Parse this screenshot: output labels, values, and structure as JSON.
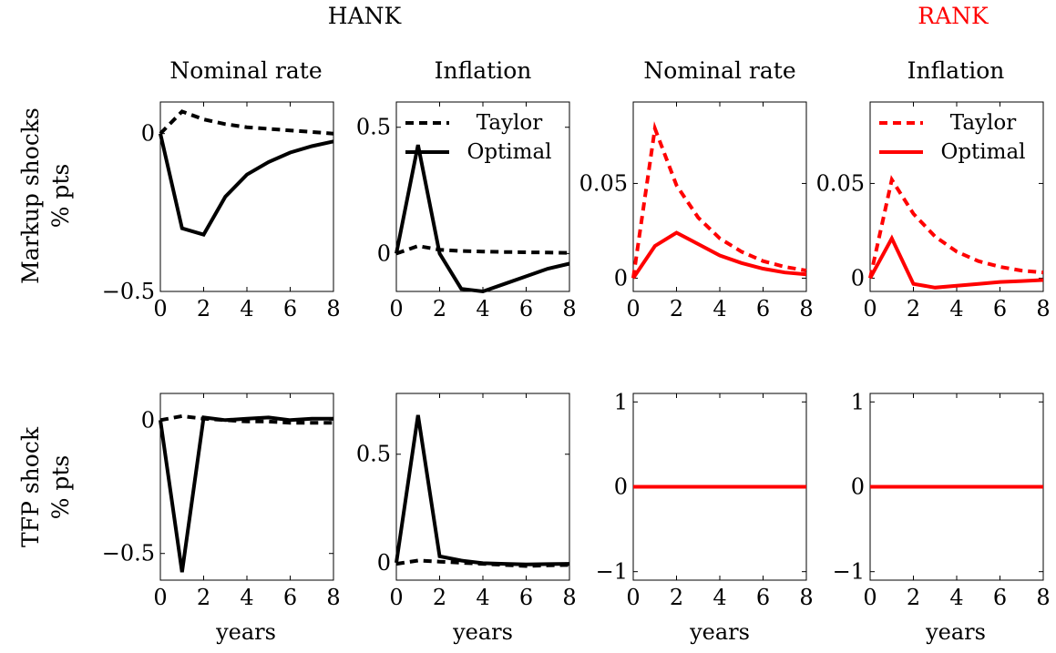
{
  "group_titles": {
    "hank": "HANK",
    "rank": "RANK"
  },
  "group_colors": {
    "hank": "#000000",
    "rank": "#ff0000"
  },
  "column_titles": [
    "Nominal rate",
    "Inflation",
    "Nominal rate",
    "Inflation"
  ],
  "row_labels": [
    {
      "line1": "Markup shocks",
      "line2": "% pts"
    },
    {
      "line1": "TFP shock",
      "line2": "% pts"
    }
  ],
  "xlabel": "years",
  "legend": {
    "taylor": "Taylor",
    "optimal": "Optimal"
  },
  "chart_data": [
    {
      "type": "line",
      "id": "hank-markup-nominal",
      "row": 0,
      "col": 0,
      "color": "#000000",
      "x": [
        0,
        1,
        2,
        3,
        4,
        5,
        6,
        7,
        8
      ],
      "xlim": [
        0,
        8
      ],
      "ylim": [
        -0.5,
        0.1
      ],
      "xticks": [
        "0",
        "2",
        "4",
        "6",
        "8"
      ],
      "yticks": [
        {
          "v": 0,
          "label": "0"
        },
        {
          "v": -0.5,
          "label": "−0.5"
        }
      ],
      "series": [
        {
          "name": "Taylor",
          "style": "dashed",
          "values": [
            0,
            0.07,
            0.045,
            0.03,
            0.02,
            0.015,
            0.01,
            0.005,
            0.0
          ]
        },
        {
          "name": "Optimal",
          "style": "solid",
          "values": [
            0,
            -0.3,
            -0.32,
            -0.2,
            -0.13,
            -0.09,
            -0.06,
            -0.04,
            -0.025
          ]
        }
      ]
    },
    {
      "type": "line",
      "id": "hank-markup-inflation",
      "row": 0,
      "col": 1,
      "color": "#000000",
      "x": [
        0,
        1,
        2,
        3,
        4,
        5,
        6,
        7,
        8
      ],
      "xlim": [
        0,
        8
      ],
      "ylim": [
        -0.15,
        0.6
      ],
      "legend": true,
      "xticks": [
        "0",
        "2",
        "4",
        "6",
        "8"
      ],
      "yticks": [
        {
          "v": 0,
          "label": "0"
        },
        {
          "v": 0.5,
          "label": "0.5"
        }
      ],
      "series": [
        {
          "name": "Taylor",
          "style": "dashed",
          "values": [
            0,
            0.03,
            0.015,
            0.01,
            0.008,
            0.006,
            0.005,
            0.004,
            0.003
          ]
        },
        {
          "name": "Optimal",
          "style": "solid",
          "values": [
            0,
            0.43,
            0,
            -0.14,
            -0.15,
            -0.12,
            -0.09,
            -0.06,
            -0.04
          ]
        }
      ]
    },
    {
      "type": "line",
      "id": "rank-markup-nominal",
      "row": 0,
      "col": 2,
      "color": "#ff0000",
      "x": [
        0,
        1,
        2,
        3,
        4,
        5,
        6,
        7,
        8
      ],
      "xlim": [
        0,
        8
      ],
      "ylim": [
        -0.007,
        0.093
      ],
      "xticks": [
        "0",
        "2",
        "4",
        "6",
        "8"
      ],
      "yticks": [
        {
          "v": 0,
          "label": "0"
        },
        {
          "v": 0.05,
          "label": "0.05"
        }
      ],
      "series": [
        {
          "name": "Taylor",
          "style": "dashed",
          "values": [
            0,
            0.079,
            0.049,
            0.032,
            0.021,
            0.014,
            0.009,
            0.006,
            0.004
          ]
        },
        {
          "name": "Optimal",
          "style": "solid",
          "values": [
            0,
            0.017,
            0.024,
            0.018,
            0.012,
            0.008,
            0.005,
            0.003,
            0.002
          ]
        }
      ]
    },
    {
      "type": "line",
      "id": "rank-markup-inflation",
      "row": 0,
      "col": 3,
      "color": "#ff0000",
      "x": [
        0,
        1,
        2,
        3,
        4,
        5,
        6,
        7,
        8
      ],
      "xlim": [
        0,
        8
      ],
      "ylim": [
        -0.007,
        0.093
      ],
      "legend": true,
      "xticks": [
        "0",
        "2",
        "4",
        "6",
        "8"
      ],
      "yticks": [
        {
          "v": 0,
          "label": "0"
        },
        {
          "v": 0.05,
          "label": "0.05"
        }
      ],
      "series": [
        {
          "name": "Taylor",
          "style": "dashed",
          "values": [
            0,
            0.052,
            0.034,
            0.022,
            0.014,
            0.009,
            0.006,
            0.004,
            0.003
          ]
        },
        {
          "name": "Optimal",
          "style": "solid",
          "values": [
            0,
            0.021,
            -0.003,
            -0.005,
            -0.004,
            -0.003,
            -0.002,
            -0.0015,
            -0.001
          ]
        }
      ]
    },
    {
      "type": "line",
      "id": "hank-tfp-nominal",
      "row": 1,
      "col": 0,
      "color": "#000000",
      "x": [
        0,
        1,
        2,
        3,
        4,
        5,
        6,
        7,
        8
      ],
      "xlim": [
        0,
        8
      ],
      "ylim": [
        -0.6,
        0.1
      ],
      "xticks": [
        "0",
        "2",
        "4",
        "6",
        "8"
      ],
      "yticks": [
        {
          "v": 0,
          "label": "0"
        },
        {
          "v": -0.5,
          "label": "−0.5"
        }
      ],
      "series": [
        {
          "name": "Taylor",
          "style": "dashed",
          "values": [
            0,
            0.015,
            0.005,
            0,
            -0.005,
            -0.005,
            -0.01,
            -0.01,
            -0.01
          ]
        },
        {
          "name": "Optimal",
          "style": "solid",
          "values": [
            0,
            -0.57,
            0.01,
            0,
            0.005,
            0.01,
            0.0,
            0.005,
            0.005
          ]
        }
      ]
    },
    {
      "type": "line",
      "id": "hank-tfp-inflation",
      "row": 1,
      "col": 1,
      "color": "#000000",
      "x": [
        0,
        1,
        2,
        3,
        4,
        5,
        6,
        7,
        8
      ],
      "xlim": [
        0,
        8
      ],
      "ylim": [
        -0.08,
        0.78
      ],
      "xticks": [
        "0",
        "2",
        "4",
        "6",
        "8"
      ],
      "yticks": [
        {
          "v": 0,
          "label": "0"
        },
        {
          "v": 0.5,
          "label": "0.5"
        }
      ],
      "series": [
        {
          "name": "Taylor",
          "style": "dashed",
          "values": [
            -0.005,
            0.01,
            0.005,
            0.0,
            -0.005,
            -0.01,
            -0.015,
            -0.012,
            -0.01
          ]
        },
        {
          "name": "Optimal",
          "style": "solid",
          "values": [
            0,
            0.68,
            0.03,
            0.01,
            -0.002,
            -0.005,
            -0.008,
            -0.006,
            -0.005
          ]
        }
      ]
    },
    {
      "type": "line",
      "id": "rank-tfp-nominal",
      "row": 1,
      "col": 2,
      "color": "#ff0000",
      "x": [
        0,
        1,
        2,
        3,
        4,
        5,
        6,
        7,
        8
      ],
      "xlim": [
        0,
        8
      ],
      "ylim": [
        -1.1,
        1.1
      ],
      "xticks": [
        "0",
        "2",
        "4",
        "6",
        "8"
      ],
      "yticks": [
        {
          "v": 1,
          "label": "1"
        },
        {
          "v": 0,
          "label": "0"
        },
        {
          "v": -1,
          "label": "−1"
        }
      ],
      "series": [
        {
          "name": "Taylor",
          "style": "dashed",
          "values": [
            0,
            0,
            0,
            0,
            0,
            0,
            0,
            0,
            0
          ]
        },
        {
          "name": "Optimal",
          "style": "solid",
          "values": [
            0,
            0,
            0,
            0,
            0,
            0,
            0,
            0,
            0
          ]
        }
      ]
    },
    {
      "type": "line",
      "id": "rank-tfp-inflation",
      "row": 1,
      "col": 3,
      "color": "#ff0000",
      "x": [
        0,
        1,
        2,
        3,
        4,
        5,
        6,
        7,
        8
      ],
      "xlim": [
        0,
        8
      ],
      "ylim": [
        -1.1,
        1.1
      ],
      "xticks": [
        "0",
        "2",
        "4",
        "6",
        "8"
      ],
      "yticks": [
        {
          "v": 1,
          "label": "1"
        },
        {
          "v": 0,
          "label": "0"
        },
        {
          "v": -1,
          "label": "−1"
        }
      ],
      "series": [
        {
          "name": "Taylor",
          "style": "dashed",
          "values": [
            0,
            0,
            0,
            0,
            0,
            0,
            0,
            0,
            0
          ]
        },
        {
          "name": "Optimal",
          "style": "solid",
          "values": [
            0,
            0,
            0,
            0,
            0,
            0,
            0,
            0,
            0
          ]
        }
      ]
    }
  ]
}
